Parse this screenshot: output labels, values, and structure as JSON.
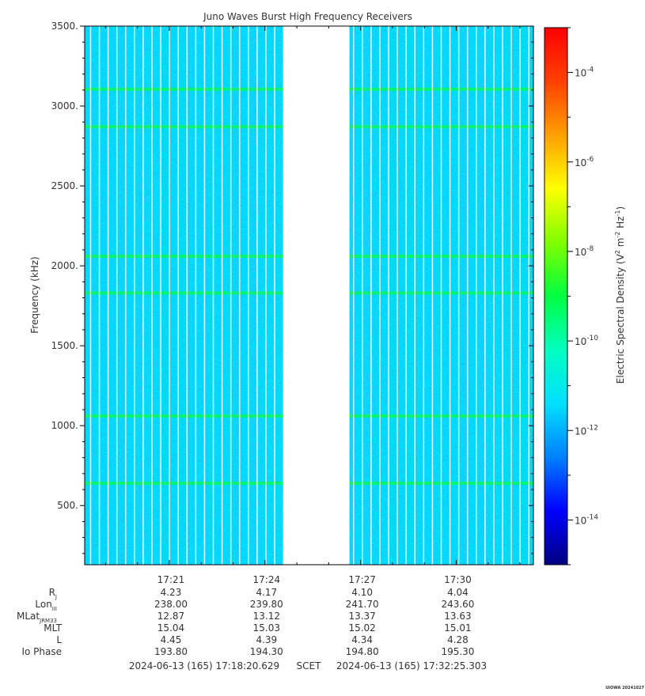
{
  "chart_data": {
    "type": "heatmap",
    "title": "Juno Waves Burst High Frequency Receivers",
    "ylabel": "Frequency (kHz)",
    "colorbar_label": "Electric Spectral Density (V² m⁻² Hz⁻¹)",
    "colorbar_label_parts": {
      "a": "Electric Spectral Density (V",
      "b": "2",
      "c": " m",
      "d": "-2",
      "e": " Hz",
      "f": "-1",
      "g": ")"
    },
    "ylim": [
      130,
      3500
    ],
    "yticks": [
      500,
      1000,
      1500,
      2000,
      2500,
      3000,
      3500
    ],
    "ytick_labels": [
      "500.",
      "1000.",
      "1500.",
      "2000.",
      "2500.",
      "3000.",
      "3500."
    ],
    "xlim": [
      "17:18:20.629",
      "17:32:25.303"
    ],
    "xtick_labels": [
      "17:21",
      "17:24",
      "17:27",
      "17:30"
    ],
    "colorbar": {
      "scale": "log",
      "range_exponent": [
        -15,
        -3
      ],
      "tick_exponents": [
        -14,
        -12,
        -10,
        -8,
        -6,
        -4
      ],
      "tick_base": "10",
      "tick_labels": [
        "-14",
        "-12",
        "-10",
        "-8",
        "-6",
        "-4"
      ],
      "colors": [
        "#000080",
        "#0000ff",
        "#0080ff",
        "#00e0ff",
        "#00ffc0",
        "#00ff40",
        "#80ff00",
        "#ffff00",
        "#ffa000",
        "#ff4000",
        "#ff0000"
      ]
    },
    "background_level_exponent": -12,
    "emission_lines_khz": [
      640,
      1060,
      1830,
      2060,
      2870,
      3105
    ],
    "data_gap": [
      "17:24:34",
      "17:26:39"
    ]
  },
  "ephemeris": {
    "rows": [
      {
        "label": "R",
        "sub": "J",
        "values": [
          "4.23",
          "4.17",
          "4.10",
          "4.04"
        ]
      },
      {
        "label": "Lon",
        "sub": "III",
        "values": [
          "238.00",
          "239.80",
          "241.70",
          "243.60"
        ]
      },
      {
        "label": "MLat",
        "sub": "JRM33",
        "values": [
          "12.87",
          "13.12",
          "13.37",
          "13.63"
        ]
      },
      {
        "label": "MLT",
        "sub": "",
        "values": [
          "15.04",
          "15.03",
          "15.02",
          "15.01"
        ]
      },
      {
        "label": "L",
        "sub": "",
        "values": [
          "4.45",
          "4.39",
          "4.34",
          "4.28"
        ]
      },
      {
        "label": "Io Phase",
        "sub": "",
        "values": [
          "193.80",
          "194.30",
          "194.80",
          "195.30"
        ]
      }
    ]
  },
  "time_range": {
    "start": "2024-06-13 (165) 17:18:20.629",
    "label": "SCET",
    "end": "2024-06-13 (165) 17:32:25.303"
  },
  "credit": "UIOWA 20241027"
}
